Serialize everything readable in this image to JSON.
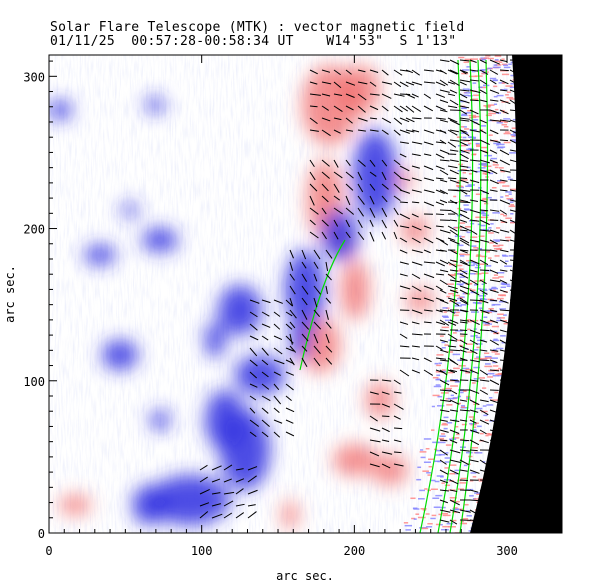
{
  "chart_data": {
    "type": "heatmap",
    "title": "Solar Flare Telescope (MTK) : vector magnetic field",
    "subtitle": "01/11/25  00:57:28-00:58:34 UT    W14'53\"  S 1'13\"",
    "xlabel": "arc sec.",
    "ylabel": "arc sec.",
    "xlim": [
      0,
      336
    ],
    "ylim": [
      0,
      314
    ],
    "xticks": [
      "0",
      "100",
      "200",
      "300"
    ],
    "yticks": [
      "0",
      "100",
      "200",
      "300"
    ],
    "xtick_values": [
      0,
      100,
      200,
      300
    ],
    "ytick_values": [
      0,
      100,
      200,
      300
    ],
    "colors": {
      "positive": "#f06060",
      "negative": "#3030e0",
      "contour": "#00dd00",
      "vector": "#000000",
      "off_limb": "#000000"
    }
  }
}
